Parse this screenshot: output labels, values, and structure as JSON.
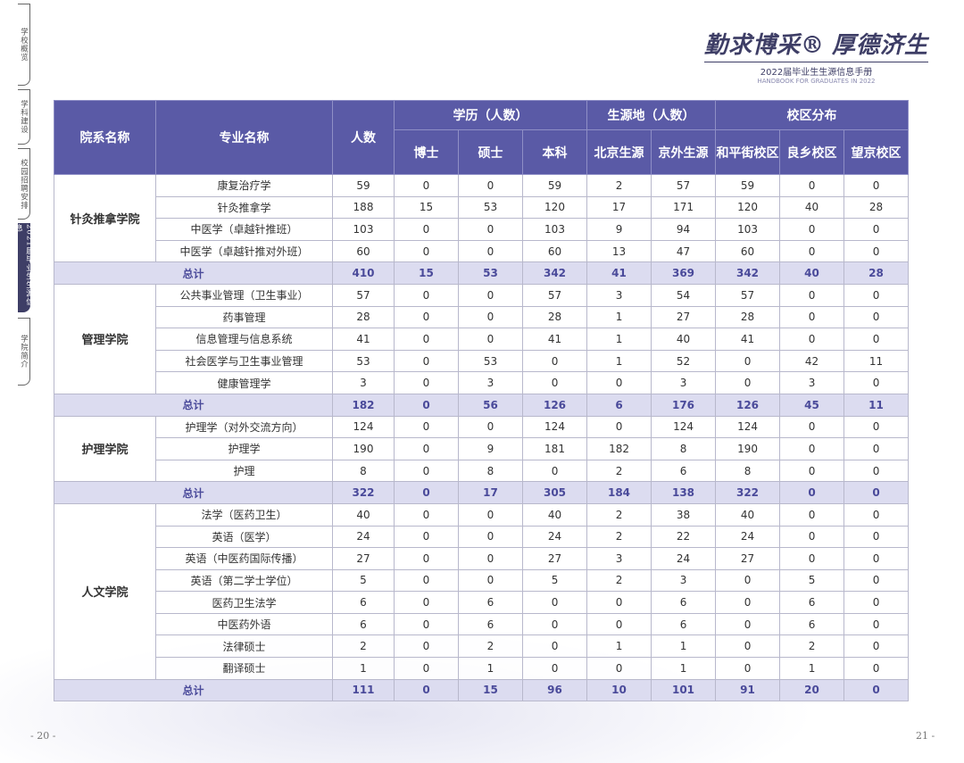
{
  "sidebar": {
    "tabs": [
      "学校概览",
      "学科建设",
      "校园招聘安排",
      "2021届毕业生生源信息",
      "学院简介"
    ]
  },
  "header": {
    "slogan_left": "勤求博采®",
    "slogan_right": "厚德济生",
    "subtitle": "2022届毕业生生源信息手册",
    "subtitle_en": "HANDBOOK FOR GRADUATES IN 2022"
  },
  "table": {
    "columns": {
      "college": "院系名称",
      "major": "专业名称",
      "count": "人数",
      "groups": [
        {
          "label": "学历（人数）",
          "columns": [
            "博士",
            "硕士",
            "本科"
          ]
        },
        {
          "label": "生源地（人数）",
          "columns": [
            "北京生源",
            "京外生源"
          ]
        },
        {
          "label": "校区分布",
          "columns": [
            "和平街校区",
            "良乡校区",
            "望京校区"
          ]
        }
      ]
    },
    "sections": [
      {
        "college": "针灸推拿学院",
        "rows": [
          {
            "major": "康复治疗学",
            "values": [
              59,
              0,
              0,
              59,
              2,
              57,
              59,
              0,
              0
            ]
          },
          {
            "major": "针灸推拿学",
            "values": [
              188,
              15,
              53,
              120,
              17,
              171,
              120,
              40,
              28
            ]
          },
          {
            "major": "中医学（卓越针推班）",
            "values": [
              103,
              0,
              0,
              103,
              9,
              94,
              103,
              0,
              0
            ]
          },
          {
            "major": "中医学（卓越针推对外班）",
            "values": [
              60,
              0,
              0,
              60,
              13,
              47,
              60,
              0,
              0
            ]
          }
        ],
        "total": {
          "label": "总计",
          "values": [
            410,
            15,
            53,
            342,
            41,
            369,
            342,
            40,
            28
          ]
        }
      },
      {
        "college": "管理学院",
        "rows": [
          {
            "major": "公共事业管理（卫生事业）",
            "values": [
              57,
              0,
              0,
              57,
              3,
              54,
              57,
              0,
              0
            ]
          },
          {
            "major": "药事管理",
            "values": [
              28,
              0,
              0,
              28,
              1,
              27,
              28,
              0,
              0
            ]
          },
          {
            "major": "信息管理与信息系统",
            "values": [
              41,
              0,
              0,
              41,
              1,
              40,
              41,
              0,
              0
            ]
          },
          {
            "major": "社会医学与卫生事业管理",
            "values": [
              53,
              0,
              53,
              0,
              1,
              52,
              0,
              42,
              11
            ]
          },
          {
            "major": "健康管理学",
            "values": [
              3,
              0,
              3,
              0,
              0,
              3,
              0,
              3,
              0
            ]
          }
        ],
        "total": {
          "label": "总计",
          "values": [
            182,
            0,
            56,
            126,
            6,
            176,
            126,
            45,
            11
          ]
        }
      },
      {
        "college": "护理学院",
        "rows": [
          {
            "major": "护理学（对外交流方向）",
            "values": [
              124,
              0,
              0,
              124,
              0,
              124,
              124,
              0,
              0
            ]
          },
          {
            "major": "护理学",
            "values": [
              190,
              0,
              9,
              181,
              182,
              8,
              190,
              0,
              0
            ]
          },
          {
            "major": "护理",
            "values": [
              8,
              0,
              8,
              0,
              2,
              6,
              8,
              0,
              0
            ]
          }
        ],
        "total": {
          "label": "总计",
          "values": [
            322,
            0,
            17,
            305,
            184,
            138,
            322,
            0,
            0
          ]
        }
      },
      {
        "college": "人文学院",
        "rows": [
          {
            "major": "法学（医药卫生）",
            "values": [
              40,
              0,
              0,
              40,
              2,
              38,
              40,
              0,
              0
            ]
          },
          {
            "major": "英语（医学）",
            "values": [
              24,
              0,
              0,
              24,
              2,
              22,
              24,
              0,
              0
            ]
          },
          {
            "major": "英语（中医药国际传播）",
            "values": [
              27,
              0,
              0,
              27,
              3,
              24,
              27,
              0,
              0
            ]
          },
          {
            "major": "英语（第二学士学位）",
            "values": [
              5,
              0,
              0,
              5,
              2,
              3,
              0,
              5,
              0
            ]
          },
          {
            "major": "医药卫生法学",
            "values": [
              6,
              0,
              6,
              0,
              0,
              6,
              0,
              6,
              0
            ]
          },
          {
            "major": "中医药外语",
            "values": [
              6,
              0,
              6,
              0,
              0,
              6,
              0,
              6,
              0
            ]
          },
          {
            "major": "法律硕士",
            "values": [
              2,
              0,
              2,
              0,
              1,
              1,
              0,
              2,
              0
            ]
          },
          {
            "major": "翻译硕士",
            "values": [
              1,
              0,
              1,
              0,
              0,
              1,
              0,
              1,
              0
            ]
          }
        ],
        "total": {
          "label": "总计",
          "values": [
            111,
            0,
            15,
            96,
            10,
            101,
            91,
            20,
            0
          ]
        }
      }
    ]
  },
  "footer": {
    "left_page": "- 20 -",
    "right_page": "21 -"
  }
}
